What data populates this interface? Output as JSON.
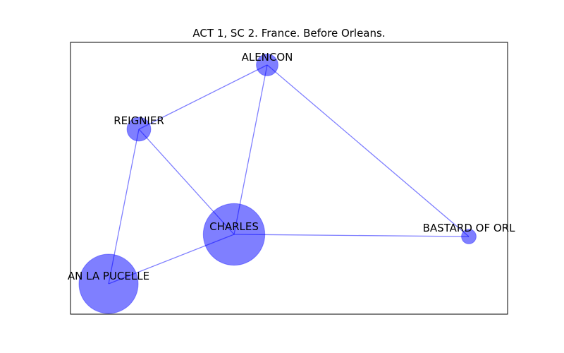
{
  "title": "ACT 1, SC 2. France. Before Orleans.",
  "colors": {
    "node_fill": "#0000ff",
    "edge": "#0000ff",
    "frame": "#000000",
    "background": "#ffffff"
  },
  "nodes": [
    {
      "id": "alencon",
      "label": "ALENCON",
      "weight": 1.0
    },
    {
      "id": "reignier",
      "label": "REIGNIER",
      "weight": 1.2
    },
    {
      "id": "charles",
      "label": "CHARLES",
      "weight": 8.0
    },
    {
      "id": "bastard",
      "label": "BASTARD OF ORL",
      "weight": 0.45
    },
    {
      "id": "joan",
      "label": "AN LA PUCELLE",
      "weight": 7.4
    }
  ],
  "edges": [
    [
      "alencon",
      "reignier"
    ],
    [
      "alencon",
      "charles"
    ],
    [
      "alencon",
      "bastard"
    ],
    [
      "reignier",
      "charles"
    ],
    [
      "reignier",
      "joan"
    ],
    [
      "charles",
      "bastard"
    ],
    [
      "charles",
      "joan"
    ]
  ]
}
